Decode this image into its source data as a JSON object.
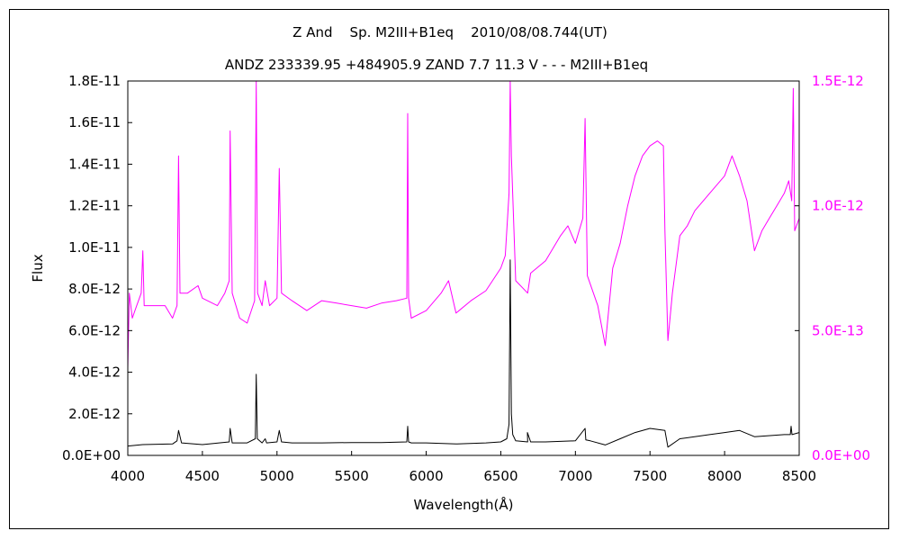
{
  "chart_data": {
    "type": "line",
    "title": "Z And    Sp. M2III+B1eq    2010/08/08.744(UT)",
    "subtitle": "ANDZ 233339.95 +484905.9 ZAND 7.7 11.3 V - - - M2III+B1eq",
    "xlabel": "Wavelength(Å)",
    "ylabel": "Flux",
    "xlim": [
      4000,
      8500
    ],
    "ylim_left": [
      0,
      1.8e-11
    ],
    "ylim_right": [
      0,
      1.5e-12
    ],
    "x_ticks": [
      "4000",
      "4500",
      "5000",
      "5500",
      "6000",
      "6500",
      "7000",
      "7500",
      "8000",
      "8500"
    ],
    "y_ticks_left": [
      "0.0E+00",
      "2.0E-12",
      "4.0E-12",
      "6.0E-12",
      "8.0E-12",
      "1.0E-11",
      "1.2E-11",
      "1.4E-11",
      "1.6E-11",
      "1.8E-11"
    ],
    "y_ticks_right": [
      "0.0E+00",
      "5.0E-13",
      "1.0E-12",
      "1.5E-12"
    ],
    "grid": false,
    "colors": {
      "left_axis_series": "#000000",
      "right_axis_series": "#ff00ff"
    },
    "series": [
      {
        "axis": "left",
        "color": "#000000",
        "x": [
          4000,
          4100,
          4300,
          4330,
          4340,
          4360,
          4500,
          4680,
          4686,
          4700,
          4800,
          4855,
          4861,
          4868,
          4900,
          4921,
          4930,
          5000,
          5015,
          5030,
          5100,
          5300,
          5500,
          5700,
          5870,
          5876,
          5882,
          5900,
          6000,
          6200,
          6400,
          6500,
          6540,
          6555,
          6563,
          6571,
          6580,
          6600,
          6680,
          6678,
          6700,
          6800,
          7000,
          7065,
          7070,
          7100,
          7200,
          7300,
          7400,
          7500,
          7600,
          7620,
          7700,
          7900,
          8000,
          8100,
          8200,
          8400,
          8440,
          8446,
          8452,
          8500
        ],
        "values": [
          4.5e-13,
          5.2e-13,
          5.5e-13,
          7e-13,
          1.2e-12,
          6e-13,
          5.2e-13,
          6.5e-13,
          1.3e-12,
          6e-13,
          6e-13,
          8e-13,
          3.9e-12,
          8e-13,
          6e-13,
          8e-13,
          6e-13,
          6.5e-13,
          1.2e-12,
          6.5e-13,
          6e-13,
          6e-13,
          6.2e-13,
          6.2e-13,
          6.5e-13,
          1.4e-12,
          6.5e-13,
          6e-13,
          6e-13,
          5.5e-13,
          6e-13,
          6.5e-13,
          8e-13,
          1.5e-12,
          9.4e-12,
          2e-12,
          1e-12,
          7e-13,
          6.5e-13,
          1.1e-12,
          6.5e-13,
          6.5e-13,
          7e-13,
          1.3e-12,
          7.5e-13,
          7e-13,
          5e-13,
          8e-13,
          1.1e-12,
          1.3e-12,
          1.2e-12,
          4e-13,
          8e-13,
          1e-12,
          1.1e-12,
          1.2e-12,
          9e-13,
          1e-12,
          1e-12,
          1.4e-12,
          1e-12,
          1.1e-12
        ]
      },
      {
        "axis": "right",
        "color": "#ff00ff",
        "x": [
          4000,
          4010,
          4030,
          4060,
          4090,
          4101,
          4110,
          4130,
          4200,
          4250,
          4300,
          4330,
          4340,
          4350,
          4400,
          4471,
          4500,
          4600,
          4650,
          4680,
          4686,
          4700,
          4750,
          4800,
          4850,
          4861,
          4870,
          4900,
          4921,
          4950,
          5000,
          5015,
          5030,
          5100,
          5200,
          5300,
          5400,
          5500,
          5600,
          5700,
          5800,
          5870,
          5876,
          5882,
          5900,
          6000,
          6100,
          6150,
          6200,
          6300,
          6400,
          6500,
          6530,
          6555,
          6563,
          6571,
          6600,
          6680,
          6700,
          6800,
          6900,
          6950,
          7000,
          7050,
          7065,
          7080,
          7150,
          7200,
          7250,
          7300,
          7350,
          7400,
          7450,
          7500,
          7550,
          7590,
          7600,
          7620,
          7650,
          7700,
          7750,
          7800,
          7900,
          8000,
          8050,
          8100,
          8150,
          8200,
          8250,
          8300,
          8350,
          8400,
          8430,
          8450,
          8460,
          8470,
          8500
        ],
        "values": [
          3.5e-13,
          6.5e-13,
          5.5e-13,
          6e-13,
          6.5e-13,
          8.2e-13,
          6e-13,
          6e-13,
          6e-13,
          6e-13,
          5.5e-13,
          6e-13,
          1.2e-12,
          6.5e-13,
          6.5e-13,
          6.8e-13,
          6.3e-13,
          6e-13,
          6.5e-13,
          7e-13,
          1.3e-12,
          6.5e-13,
          5.5e-13,
          5.3e-13,
          6.2e-13,
          1.5e-12,
          6.5e-13,
          6e-13,
          7e-13,
          6e-13,
          6.3e-13,
          1.15e-12,
          6.5e-13,
          6.2e-13,
          5.8e-13,
          6.2e-13,
          6.1e-13,
          6e-13,
          5.9e-13,
          6.1e-13,
          6.2e-13,
          6.3e-13,
          1.37e-12,
          6.3e-13,
          5.5e-13,
          5.8e-13,
          6.5e-13,
          7e-13,
          5.7e-13,
          6.2e-13,
          6.6e-13,
          7.5e-13,
          8e-13,
          1.05e-12,
          1.5e-12,
          1.2e-12,
          7e-13,
          6.5e-13,
          7.3e-13,
          7.8e-13,
          8.8e-13,
          9.2e-13,
          8.5e-13,
          9.5e-13,
          1.35e-12,
          7.2e-13,
          6e-13,
          4.4e-13,
          7.5e-13,
          8.5e-13,
          1e-12,
          1.12e-12,
          1.2e-12,
          1.24e-12,
          1.26e-12,
          1.24e-12,
          9e-13,
          4.6e-13,
          6.5e-13,
          8.8e-13,
          9.2e-13,
          9.8e-13,
          1.05e-12,
          1.12e-12,
          1.2e-12,
          1.12e-12,
          1.02e-12,
          8.2e-13,
          9e-13,
          9.5e-13,
          1e-12,
          1.05e-12,
          1.1e-12,
          1.02e-12,
          1.47e-12,
          9e-13,
          9.5e-13
        ]
      }
    ]
  }
}
